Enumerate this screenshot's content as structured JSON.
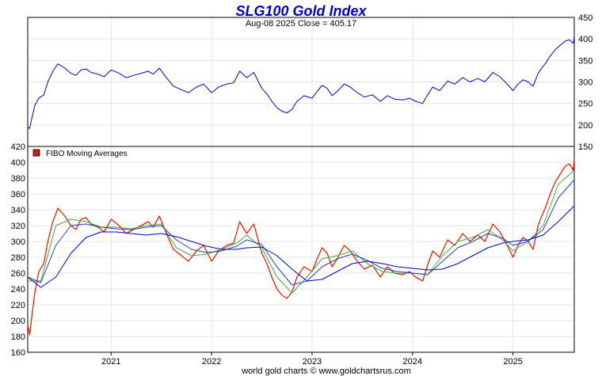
{
  "chart_data": [
    {
      "type": "line",
      "title": "SLG100 Gold Index",
      "subtitle": "Aug-08  2025   Close = 405.17",
      "ylim": [
        150,
        450
      ],
      "y_ticks": [
        150,
        200,
        250,
        300,
        350,
        400,
        450
      ],
      "xlim": [
        2020.17,
        2025.61
      ],
      "grid": true,
      "series": [
        {
          "color": "#0000cc",
          "x": [
            2020.17,
            2020.19,
            2020.21,
            2020.24,
            2020.28,
            2020.33,
            2020.37,
            2020.42,
            2020.47,
            2020.52,
            2020.55,
            2020.6,
            2020.65,
            2020.7,
            2020.75,
            2020.8,
            2020.87,
            2020.93,
            2021.0,
            2021.08,
            2021.15,
            2021.22,
            2021.3,
            2021.37,
            2021.42,
            2021.48,
            2021.55,
            2021.62,
            2021.7,
            2021.77,
            2021.85,
            2021.92,
            2022.0,
            2022.07,
            2022.15,
            2022.22,
            2022.28,
            2022.35,
            2022.42,
            2022.5,
            2022.55,
            2022.6,
            2022.65,
            2022.7,
            2022.75,
            2022.8,
            2022.85,
            2022.92,
            2023.0,
            2023.05,
            2023.1,
            2023.15,
            2023.2,
            2023.25,
            2023.32,
            2023.38,
            2023.45,
            2023.52,
            2023.6,
            2023.68,
            2023.75,
            2023.82,
            2023.9,
            2023.97,
            2024.03,
            2024.1,
            2024.15,
            2024.2,
            2024.27,
            2024.35,
            2024.42,
            2024.5,
            2024.57,
            2024.65,
            2024.72,
            2024.8,
            2024.87,
            2024.93,
            2025.0,
            2025.05,
            2025.1,
            2025.15,
            2025.2,
            2025.25,
            2025.28,
            2025.32,
            2025.37,
            2025.42,
            2025.47,
            2025.52,
            2025.56,
            2025.6,
            2025.61
          ],
          "y": [
            195,
            192,
            215,
            245,
            262,
            270,
            300,
            325,
            342,
            335,
            330,
            320,
            315,
            328,
            330,
            322,
            318,
            312,
            328,
            320,
            310,
            315,
            320,
            325,
            318,
            332,
            310,
            290,
            282,
            275,
            288,
            295,
            275,
            288,
            295,
            298,
            325,
            310,
            322,
            285,
            272,
            255,
            240,
            232,
            228,
            236,
            255,
            268,
            262,
            278,
            292,
            285,
            268,
            278,
            295,
            288,
            275,
            265,
            270,
            255,
            268,
            260,
            258,
            262,
            255,
            250,
            270,
            288,
            280,
            302,
            295,
            310,
            300,
            308,
            300,
            322,
            312,
            298,
            280,
            295,
            305,
            300,
            290,
            320,
            330,
            342,
            360,
            375,
            385,
            395,
            398,
            390,
            405
          ]
        }
      ]
    },
    {
      "type": "line",
      "legend": [
        "FIBO  Moving  Averages"
      ],
      "legend_position": "top-left",
      "ylim": [
        160,
        420
      ],
      "y_ticks": [
        160,
        180,
        200,
        220,
        240,
        260,
        280,
        300,
        320,
        340,
        360,
        380,
        400,
        420
      ],
      "x_ticks": [
        "2021",
        "2022",
        "2023",
        "2024",
        "2025"
      ],
      "xlim": [
        2020.17,
        2025.61
      ],
      "grid": true,
      "series": [
        {
          "color": "#ee2200",
          "x": [
            2020.17,
            2020.19,
            2020.21,
            2020.24,
            2020.28,
            2020.33,
            2020.37,
            2020.42,
            2020.47,
            2020.52,
            2020.55,
            2020.6,
            2020.65,
            2020.7,
            2020.75,
            2020.8,
            2020.87,
            2020.93,
            2021.0,
            2021.08,
            2021.15,
            2021.22,
            2021.3,
            2021.37,
            2021.42,
            2021.48,
            2021.55,
            2021.62,
            2021.7,
            2021.77,
            2021.85,
            2021.92,
            2022.0,
            2022.07,
            2022.15,
            2022.22,
            2022.28,
            2022.35,
            2022.42,
            2022.5,
            2022.55,
            2022.6,
            2022.65,
            2022.7,
            2022.75,
            2022.8,
            2022.85,
            2022.92,
            2023.0,
            2023.05,
            2023.1,
            2023.15,
            2023.2,
            2023.25,
            2023.32,
            2023.38,
            2023.45,
            2023.52,
            2023.6,
            2023.68,
            2023.75,
            2023.82,
            2023.9,
            2023.97,
            2024.03,
            2024.1,
            2024.15,
            2024.2,
            2024.27,
            2024.35,
            2024.42,
            2024.5,
            2024.57,
            2024.65,
            2024.72,
            2024.8,
            2024.87,
            2024.93,
            2025.0,
            2025.05,
            2025.1,
            2025.15,
            2025.2,
            2025.25,
            2025.28,
            2025.32,
            2025.37,
            2025.42,
            2025.47,
            2025.52,
            2025.56,
            2025.6,
            2025.61
          ],
          "y": [
            195,
            182,
            205,
            235,
            262,
            272,
            300,
            325,
            342,
            335,
            330,
            320,
            315,
            328,
            330,
            322,
            318,
            312,
            328,
            320,
            310,
            315,
            320,
            325,
            318,
            332,
            310,
            290,
            282,
            275,
            288,
            295,
            275,
            288,
            295,
            298,
            325,
            310,
            322,
            285,
            272,
            255,
            240,
            232,
            228,
            236,
            255,
            268,
            262,
            278,
            292,
            285,
            268,
            278,
            295,
            288,
            275,
            265,
            270,
            255,
            268,
            260,
            258,
            262,
            255,
            250,
            270,
            288,
            280,
            302,
            295,
            310,
            300,
            308,
            300,
            322,
            312,
            298,
            280,
            295,
            305,
            300,
            290,
            320,
            330,
            342,
            360,
            375,
            385,
            395,
            398,
            390,
            405
          ]
        },
        {
          "color": "#44aa44",
          "x": [
            2020.17,
            2020.3,
            2020.45,
            2020.6,
            2020.75,
            2020.9,
            2021.05,
            2021.2,
            2021.35,
            2021.5,
            2021.65,
            2021.8,
            2021.95,
            2022.1,
            2022.25,
            2022.35,
            2022.5,
            2022.65,
            2022.8,
            2022.95,
            2023.1,
            2023.25,
            2023.4,
            2023.55,
            2023.7,
            2023.85,
            2024.0,
            2024.15,
            2024.3,
            2024.45,
            2024.6,
            2024.75,
            2024.9,
            2025.0,
            2025.15,
            2025.3,
            2025.45,
            2025.61
          ],
          "y": [
            250,
            250,
            320,
            328,
            325,
            318,
            318,
            316,
            320,
            322,
            292,
            282,
            284,
            290,
            298,
            308,
            292,
            255,
            235,
            255,
            278,
            282,
            288,
            272,
            262,
            260,
            260,
            258,
            282,
            300,
            305,
            315,
            302,
            288,
            300,
            320,
            372,
            390
          ]
        },
        {
          "color": "#2244aa",
          "x": [
            2020.17,
            2020.3,
            2020.45,
            2020.6,
            2020.75,
            2020.9,
            2021.05,
            2021.2,
            2021.35,
            2021.5,
            2021.65,
            2021.8,
            2021.95,
            2022.1,
            2022.25,
            2022.35,
            2022.5,
            2022.65,
            2022.8,
            2022.95,
            2023.1,
            2023.25,
            2023.4,
            2023.55,
            2023.7,
            2023.85,
            2024.0,
            2024.15,
            2024.3,
            2024.45,
            2024.6,
            2024.75,
            2024.9,
            2025.0,
            2025.15,
            2025.3,
            2025.45,
            2025.61
          ],
          "y": [
            255,
            248,
            295,
            320,
            322,
            318,
            316,
            315,
            318,
            320,
            302,
            290,
            286,
            288,
            294,
            302,
            296,
            268,
            245,
            250,
            268,
            278,
            284,
            276,
            266,
            262,
            260,
            258,
            275,
            292,
            300,
            310,
            304,
            295,
            300,
            315,
            355,
            378
          ]
        },
        {
          "color": "#0000cc",
          "x": [
            2020.17,
            2020.3,
            2020.45,
            2020.6,
            2020.75,
            2020.9,
            2021.05,
            2021.2,
            2021.35,
            2021.5,
            2021.65,
            2021.8,
            2021.95,
            2022.1,
            2022.25,
            2022.35,
            2022.5,
            2022.65,
            2022.8,
            2022.95,
            2023.1,
            2023.25,
            2023.4,
            2023.55,
            2023.7,
            2023.85,
            2024.0,
            2024.15,
            2024.3,
            2024.45,
            2024.6,
            2024.75,
            2024.9,
            2025.0,
            2025.15,
            2025.3,
            2025.45,
            2025.61
          ],
          "y": [
            255,
            242,
            255,
            285,
            305,
            312,
            312,
            310,
            308,
            310,
            306,
            300,
            294,
            290,
            290,
            292,
            293,
            282,
            265,
            250,
            252,
            262,
            272,
            275,
            272,
            268,
            266,
            264,
            265,
            272,
            282,
            292,
            298,
            300,
            302,
            308,
            325,
            345
          ]
        }
      ]
    }
  ],
  "footer": "world gold charts © www.goldchartsrus.com",
  "colors": {
    "title": "#0000cc",
    "price_line": "#0000cc",
    "ma_red": "#ee2200",
    "ma_green": "#44aa44",
    "ma_blue_dark": "#2244aa",
    "ma_blue": "#0000cc",
    "grid": "#e6e6e6",
    "legend_swatch": "#cc2200"
  }
}
